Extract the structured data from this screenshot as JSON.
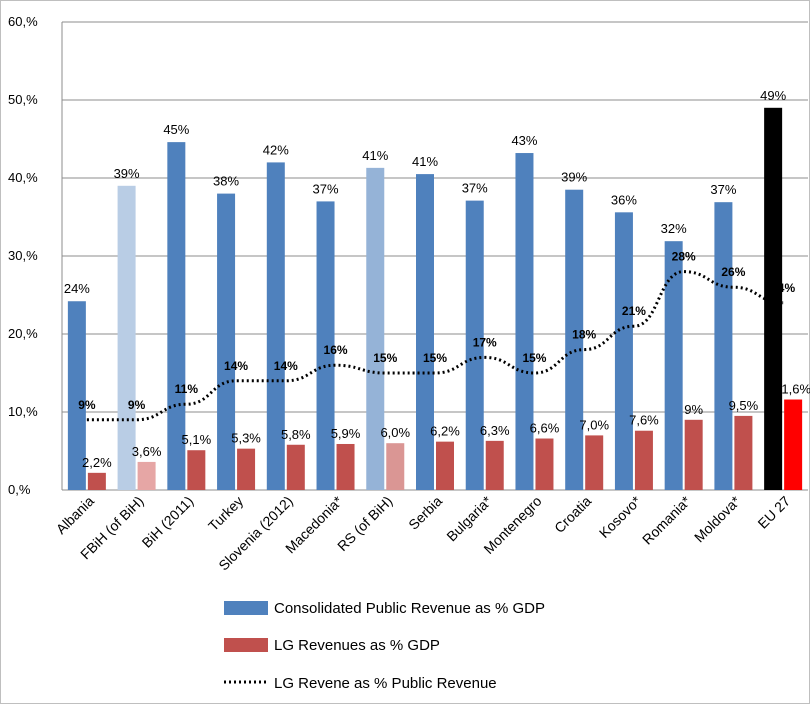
{
  "chart_data": {
    "type": "bar",
    "title": "",
    "xlabel": "",
    "ylabel": "",
    "ylim": [
      0,
      60
    ],
    "y_ticks": [
      "0,%",
      "10,%",
      "20,%",
      "30,%",
      "40,%",
      "50,%",
      "60,%"
    ],
    "grid": "horizontal",
    "legend_position": "bottom",
    "categories": [
      "Albania",
      "FBiH (of BiH)",
      "BiH (2011)",
      "Turkey",
      "Slovenia (2012)",
      "Macedonia*",
      "RS (of BiH)",
      "Serbia",
      "Bulgaria*",
      "Montenegro",
      "Croatia",
      "Kosovo*",
      "Romania*",
      "Moldova*",
      "EU 27"
    ],
    "series": [
      {
        "name": "Consolidated Public Revenue as % GDP",
        "type": "bar",
        "color": "#4f81bd",
        "values": [
          24.2,
          39.0,
          44.6,
          38.0,
          42.0,
          37.0,
          41.3,
          40.5,
          37.1,
          43.2,
          38.5,
          35.6,
          31.9,
          36.9,
          49.0
        ],
        "labels": [
          "24%",
          "39%",
          "45%",
          "38%",
          "42%",
          "37%",
          "41%",
          "41%",
          "37%",
          "43%",
          "39%",
          "36%",
          "32%",
          "37%",
          "49%"
        ],
        "point_colors": [
          "#4f81bd",
          "#b9cde5",
          "#4f81bd",
          "#4f81bd",
          "#4f81bd",
          "#4f81bd",
          "#95b3d7",
          "#4f81bd",
          "#4f81bd",
          "#4f81bd",
          "#4f81bd",
          "#4f81bd",
          "#4f81bd",
          "#4f81bd",
          "#000000"
        ]
      },
      {
        "name": "LG Revenues as % GDP",
        "type": "bar",
        "color": "#c0504d",
        "values": [
          2.2,
          3.6,
          5.1,
          5.3,
          5.8,
          5.9,
          6.0,
          6.2,
          6.3,
          6.6,
          7.0,
          7.6,
          9.0,
          9.5,
          11.6
        ],
        "labels": [
          "2,2%",
          "3,6%",
          "5,1%",
          "5,3%",
          "5,8%",
          "5,9%",
          "6,0%",
          "6,2%",
          "6,3%",
          "6,6%",
          "7,0%",
          "7,6%",
          "9%",
          "9,5%",
          "11,6%"
        ],
        "point_colors": [
          "#c0504d",
          "#e6a6a5",
          "#c0504d",
          "#c0504d",
          "#c0504d",
          "#c0504d",
          "#da9694",
          "#c0504d",
          "#c0504d",
          "#c0504d",
          "#c0504d",
          "#c0504d",
          "#c0504d",
          "#c0504d",
          "#ff0000"
        ]
      },
      {
        "name": "LG Revene as % Public Revenue",
        "type": "line",
        "style": "dotted",
        "color": "#000000",
        "values": [
          9,
          9,
          11,
          14,
          14,
          16,
          15,
          15,
          17,
          15,
          18,
          21,
          28,
          26,
          24
        ],
        "labels": [
          "9%",
          "9%",
          "11%",
          "14%",
          "14%",
          "16%",
          "15%",
          "15%",
          "17%",
          "15%",
          "18%",
          "21%",
          "28%",
          "26%",
          "24%"
        ]
      }
    ]
  }
}
